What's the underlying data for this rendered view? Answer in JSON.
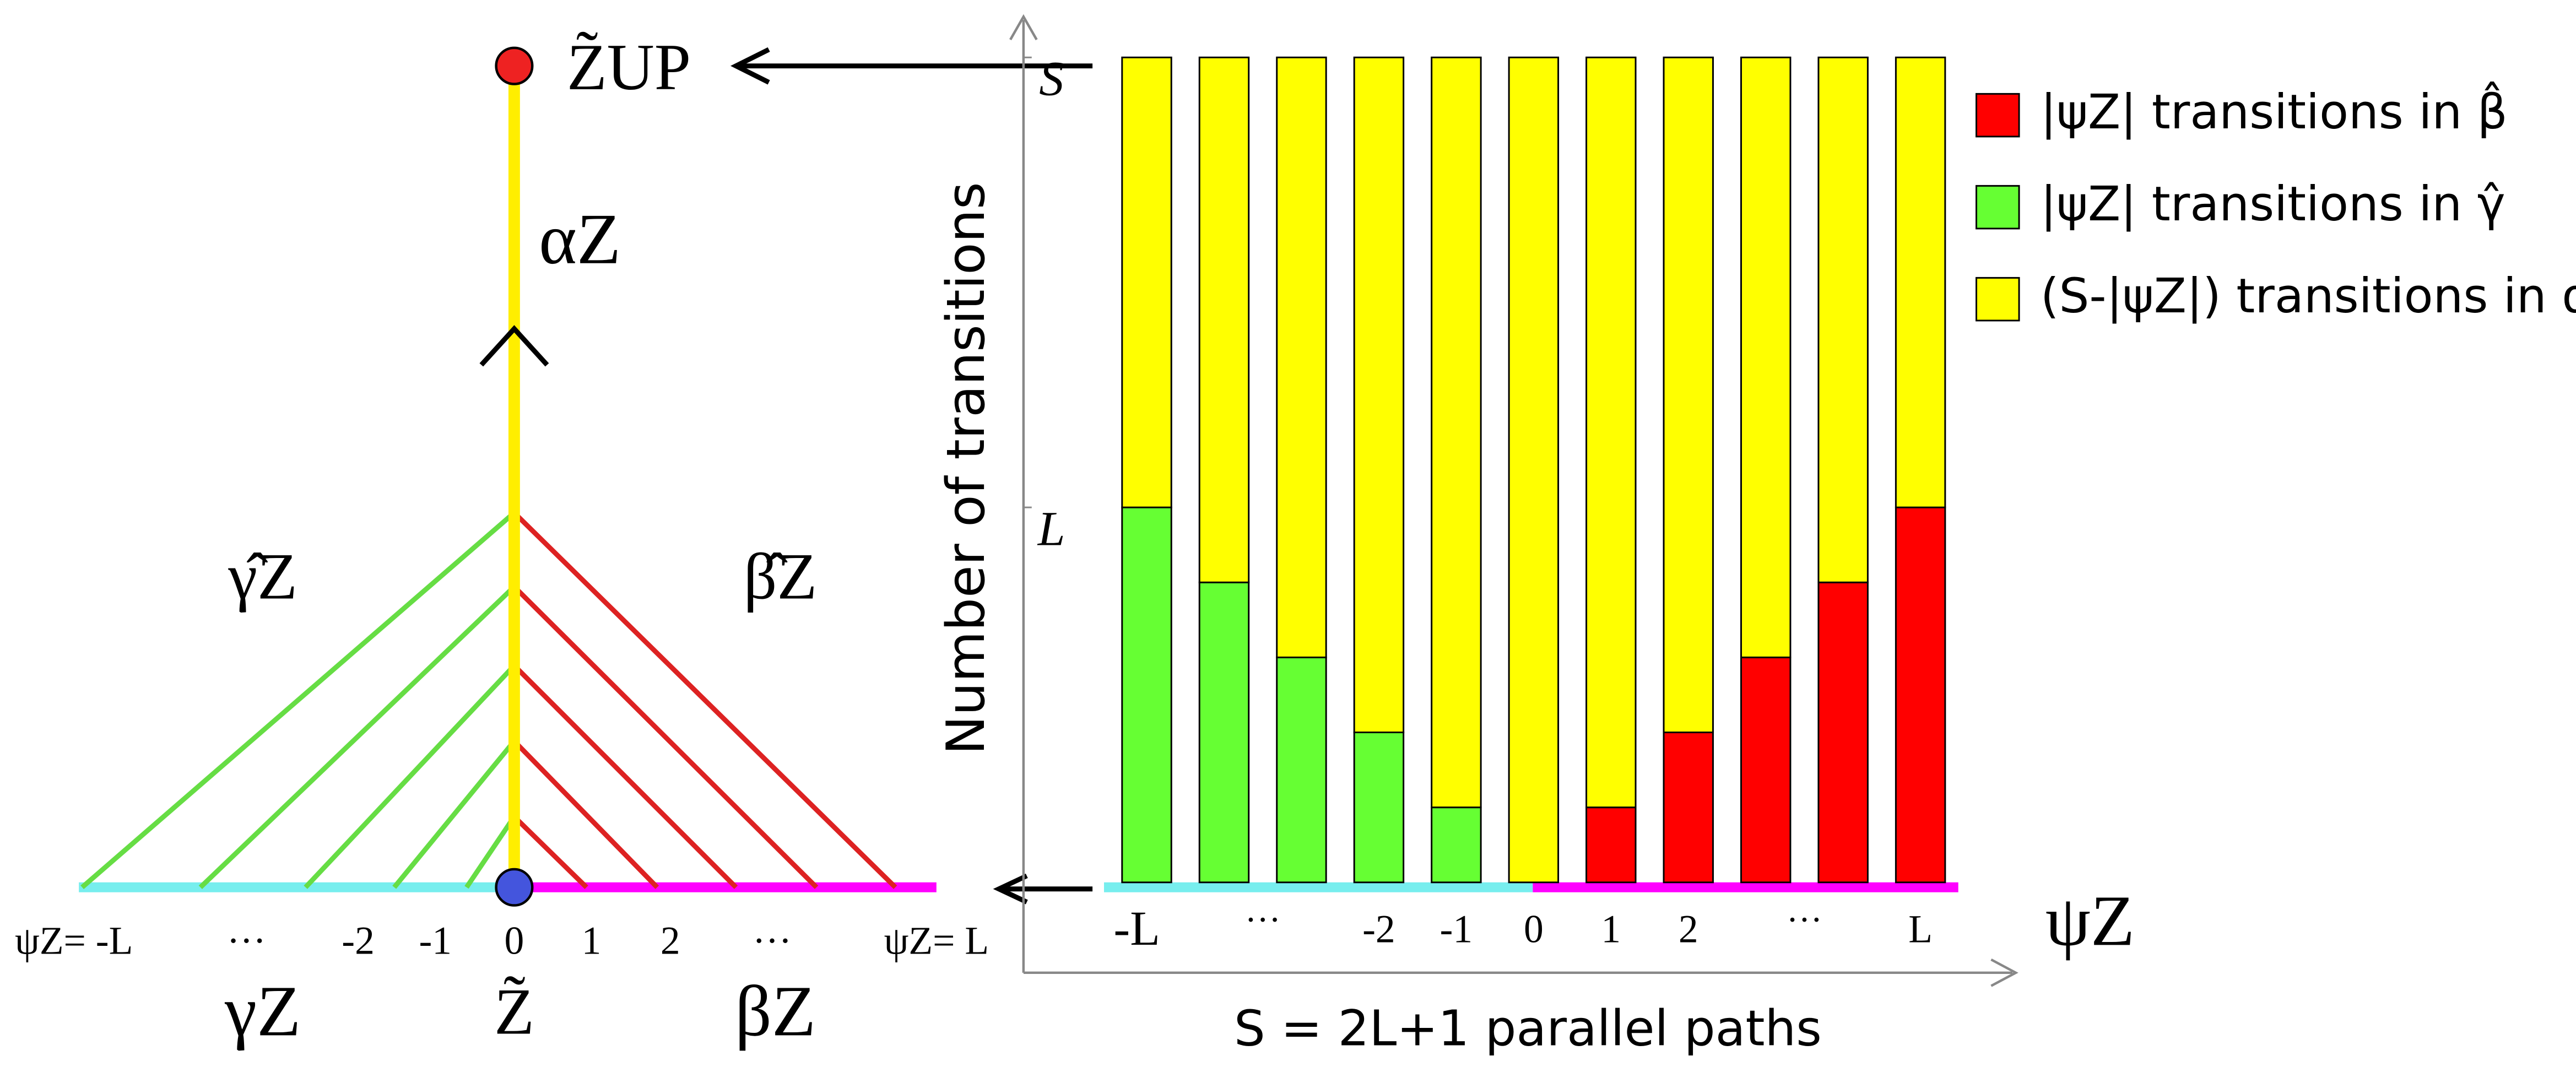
{
  "chart_data": {
    "type": "stacked_bar",
    "ylabel": "Number of transitions",
    "xlabel": "S = 2L+1 parallel paths",
    "xaxis_symbol": "ψZ",
    "categories": [
      "-L",
      null,
      null,
      "-2",
      "-1",
      "0",
      "1",
      "2",
      null,
      null,
      "L"
    ],
    "category_annotations": [
      "···",
      "···"
    ],
    "series": [
      {
        "name": "|ψZ| transitions in β̂",
        "color": "#ff0000",
        "values": [
          0,
          0,
          0,
          0,
          0,
          0,
          1,
          2,
          3,
          4,
          5
        ]
      },
      {
        "name": "|ψZ| transitions in γ̂",
        "color": "#66ff33",
        "values": [
          5,
          4,
          3,
          2,
          1,
          0,
          0,
          0,
          0,
          0,
          0
        ]
      },
      {
        "name": "(S-|ψZ|) transitions in α",
        "color": "#ffff00",
        "values": [
          6,
          7,
          8,
          9,
          10,
          11,
          10,
          9,
          8,
          7,
          6
        ]
      }
    ],
    "ylim": [
      0,
      11.5
    ],
    "yticks": [
      {
        "value": 5,
        "label": "L"
      },
      {
        "value": 11,
        "label": "S"
      }
    ],
    "grid": false
  },
  "diagram": {
    "top_node": "Z̃UP",
    "bottom_node": "Z̃",
    "alpha": "αZ",
    "gamma_hat": "γ̂Z",
    "beta_hat": "β̂Z",
    "gamma": "γZ",
    "beta": "βZ",
    "psi_labels": [
      "ψZ= -L",
      "···",
      "-2",
      "-1",
      "0",
      "1",
      "2",
      "···",
      "ψZ= L"
    ]
  }
}
